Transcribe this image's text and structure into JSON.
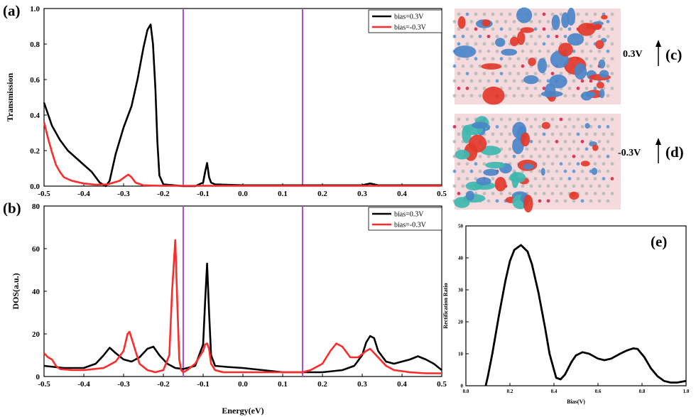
{
  "chart_data": [
    {
      "panel": "(a)",
      "type": "line",
      "ylabel": "Transmission",
      "xlim": [
        -0.5,
        0.5
      ],
      "ylim": [
        0,
        1.0
      ],
      "xticks": [
        "-0.5",
        "-0.4",
        "-0.3",
        "-0.2",
        "-0.1",
        "0.0",
        "0.1",
        "0.2",
        "0.3",
        "0.4",
        "0.5"
      ],
      "yticks": [
        "0.0",
        "0.2",
        "0.4",
        "0.6",
        "0.8",
        "1.0"
      ],
      "vlines": [
        -0.15,
        0.15
      ],
      "legend": "top-right",
      "series": [
        {
          "name": "bias=0.3V",
          "color": "#000000",
          "x": [
            -0.5,
            -0.48,
            -0.46,
            -0.44,
            -0.42,
            -0.4,
            -0.38,
            -0.36,
            -0.345,
            -0.335,
            -0.32,
            -0.3,
            -0.28,
            -0.265,
            -0.25,
            -0.24,
            -0.232,
            -0.226,
            -0.22,
            -0.215,
            -0.21,
            -0.2,
            -0.15,
            -0.12,
            -0.1,
            -0.095,
            -0.09,
            -0.085,
            -0.08,
            -0.07,
            0.0,
            0.1,
            0.2,
            0.3,
            0.32,
            0.34,
            0.4,
            0.5
          ],
          "y": [
            0.47,
            0.34,
            0.26,
            0.2,
            0.16,
            0.12,
            0.08,
            0.02,
            0.0,
            0.03,
            0.18,
            0.33,
            0.45,
            0.6,
            0.78,
            0.88,
            0.91,
            0.8,
            0.55,
            0.25,
            0.06,
            0.01,
            0.0,
            0.0,
            0.02,
            0.08,
            0.13,
            0.05,
            0.02,
            0.01,
            0.005,
            0.005,
            0.005,
            0.005,
            0.015,
            0.005,
            0.005,
            0.005
          ]
        },
        {
          "name": "bias=-0.3V",
          "color": "#ff2a2a",
          "x": [
            -0.5,
            -0.49,
            -0.48,
            -0.47,
            -0.46,
            -0.45,
            -0.43,
            -0.4,
            -0.37,
            -0.34,
            -0.31,
            -0.295,
            -0.288,
            -0.28,
            -0.27,
            -0.25,
            -0.2,
            -0.1,
            0.0,
            0.1,
            0.2,
            0.3,
            0.4,
            0.5
          ],
          "y": [
            0.36,
            0.27,
            0.19,
            0.12,
            0.08,
            0.05,
            0.03,
            0.015,
            0.008,
            0.01,
            0.03,
            0.055,
            0.065,
            0.05,
            0.02,
            0.005,
            0.002,
            0.002,
            0.002,
            0.002,
            0.002,
            0.002,
            0.002,
            0.002
          ]
        }
      ]
    },
    {
      "panel": "(b)",
      "type": "line",
      "xlabel": "Energy(eV)",
      "ylabel": "DOS(a.u.)",
      "xlim": [
        -0.5,
        0.5
      ],
      "ylim": [
        0,
        80
      ],
      "xticks": [
        "-0.5",
        "-0.4",
        "-0.3",
        "-0.2",
        "-0.1",
        "0.0",
        "0.1",
        "0.2",
        "0.3",
        "0.4",
        "0.5"
      ],
      "yticks": [
        "0",
        "20",
        "40",
        "60",
        "80"
      ],
      "vlines": [
        -0.15,
        0.15
      ],
      "legend": "top-right",
      "series": [
        {
          "name": "bias=0.3V",
          "color": "#000000",
          "x": [
            -0.5,
            -0.45,
            -0.4,
            -0.37,
            -0.35,
            -0.335,
            -0.32,
            -0.3,
            -0.28,
            -0.26,
            -0.24,
            -0.225,
            -0.21,
            -0.19,
            -0.17,
            -0.15,
            -0.12,
            -0.1,
            -0.095,
            -0.09,
            -0.085,
            -0.08,
            -0.07,
            -0.04,
            0.0,
            0.05,
            0.1,
            0.15,
            0.2,
            0.25,
            0.28,
            0.3,
            0.31,
            0.32,
            0.33,
            0.34,
            0.36,
            0.38,
            0.4,
            0.42,
            0.44,
            0.46,
            0.48,
            0.5
          ],
          "y": [
            5,
            4,
            4,
            6,
            10,
            13.5,
            11,
            8,
            7,
            9,
            13,
            14,
            10,
            6,
            4,
            3.5,
            5,
            15,
            35,
            53,
            30,
            10,
            5,
            4.5,
            4,
            3,
            2,
            2,
            2,
            3,
            5,
            10,
            16,
            19,
            18,
            12,
            7,
            6,
            7,
            8,
            9.5,
            8,
            6,
            3
          ]
        },
        {
          "name": "bias=-0.3V",
          "color": "#ff2a2a",
          "x": [
            -0.5,
            -0.49,
            -0.48,
            -0.47,
            -0.46,
            -0.43,
            -0.4,
            -0.35,
            -0.32,
            -0.3,
            -0.29,
            -0.285,
            -0.27,
            -0.26,
            -0.24,
            -0.22,
            -0.2,
            -0.185,
            -0.178,
            -0.17,
            -0.165,
            -0.16,
            -0.155,
            -0.15,
            -0.14,
            -0.12,
            -0.1,
            -0.095,
            -0.09,
            -0.085,
            -0.08,
            -0.07,
            -0.05,
            -0.02,
            0.0,
            0.05,
            0.1,
            0.15,
            0.17,
            0.2,
            0.22,
            0.235,
            0.25,
            0.27,
            0.29,
            0.31,
            0.32,
            0.34,
            0.36,
            0.38,
            0.42,
            0.46,
            0.5
          ],
          "y": [
            11,
            9,
            8,
            5,
            3.5,
            3,
            3,
            4,
            7,
            12,
            20,
            21,
            12,
            6,
            3,
            2,
            3,
            10,
            40,
            64,
            35,
            8,
            3,
            2,
            3,
            6,
            12,
            15,
            15.5,
            13,
            6,
            3,
            2,
            2,
            2,
            2,
            2,
            2,
            3,
            6,
            12,
            15.5,
            14,
            9,
            9,
            12,
            13,
            9,
            5,
            3,
            2,
            1.5,
            1.5
          ]
        }
      ]
    },
    {
      "panel": "(e)",
      "type": "line",
      "xlabel": "Bias(V)",
      "ylabel": "Rectification Ratio",
      "xlim": [
        0.0,
        1.0
      ],
      "ylim": [
        0,
        50
      ],
      "xticks": [
        "0.0",
        "0.2",
        "0.4",
        "0.6",
        "0.8",
        "1.0"
      ],
      "yticks": [
        "0",
        "10",
        "20",
        "30",
        "40",
        "50"
      ],
      "series": [
        {
          "name": "",
          "color": "#000000",
          "x": [
            0.09,
            0.1,
            0.12,
            0.15,
            0.18,
            0.2,
            0.22,
            0.25,
            0.28,
            0.3,
            0.33,
            0.36,
            0.38,
            0.41,
            0.43,
            0.45,
            0.48,
            0.5,
            0.53,
            0.56,
            0.6,
            0.63,
            0.66,
            0.7,
            0.73,
            0.76,
            0.78,
            0.81,
            0.84,
            0.87,
            0.9,
            0.93,
            0.96,
            1.0
          ],
          "y": [
            0,
            3,
            10,
            22,
            33,
            39,
            42.5,
            44,
            42,
            38,
            29,
            18,
            10,
            2.5,
            2,
            3.5,
            7.5,
            9.5,
            10.5,
            10,
            8.5,
            8,
            8.5,
            10,
            11,
            11.7,
            11.5,
            9,
            5.5,
            3,
            1.5,
            1,
            1,
            1.5
          ]
        }
      ]
    }
  ],
  "labels": {
    "panel_a": "(a)",
    "panel_b": "(b)",
    "panel_c": "(c)",
    "panel_d": "(d)",
    "panel_e": "(e)",
    "bias_c": "0.3V",
    "bias_d": "-0.3V"
  }
}
